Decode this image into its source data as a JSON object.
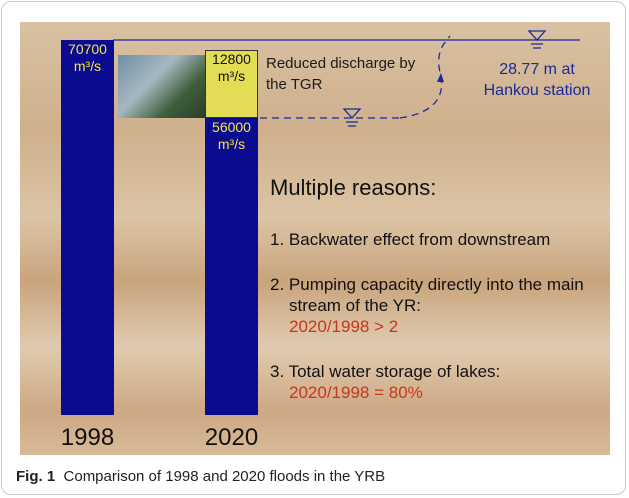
{
  "chart_data": {
    "type": "bar",
    "stacked": true,
    "categories": [
      "1998",
      "2020"
    ],
    "series": [
      {
        "color": "#0b0b8f",
        "values": [
          70700,
          56000
        ],
        "value_labels": [
          "70700 m³/s",
          "56000 m³/s"
        ]
      },
      {
        "color": "#e3dc55",
        "values": [
          null,
          12800
        ],
        "value_labels": [
          null,
          "12800 m³/s"
        ]
      }
    ],
    "ylim": [
      0,
      70700
    ],
    "annotations": [
      "Reduced discharge by the TGR",
      "28.77 m at Hankou station"
    ]
  },
  "panel": {
    "heading": "Multiple reasons:",
    "items": [
      {
        "text": "1. Backwater effect from downstream"
      },
      {
        "text": "2. Pumping capacity directly into the main stream of the YR:",
        "note": "2020/1998 > 2"
      },
      {
        "text": "3. Total water storage of lakes:",
        "note": "2020/1998 = 80%"
      }
    ]
  },
  "caption": {
    "label": "Fig. 1",
    "text": "Comparison of 1998 and 2020 floods in the YRB"
  }
}
